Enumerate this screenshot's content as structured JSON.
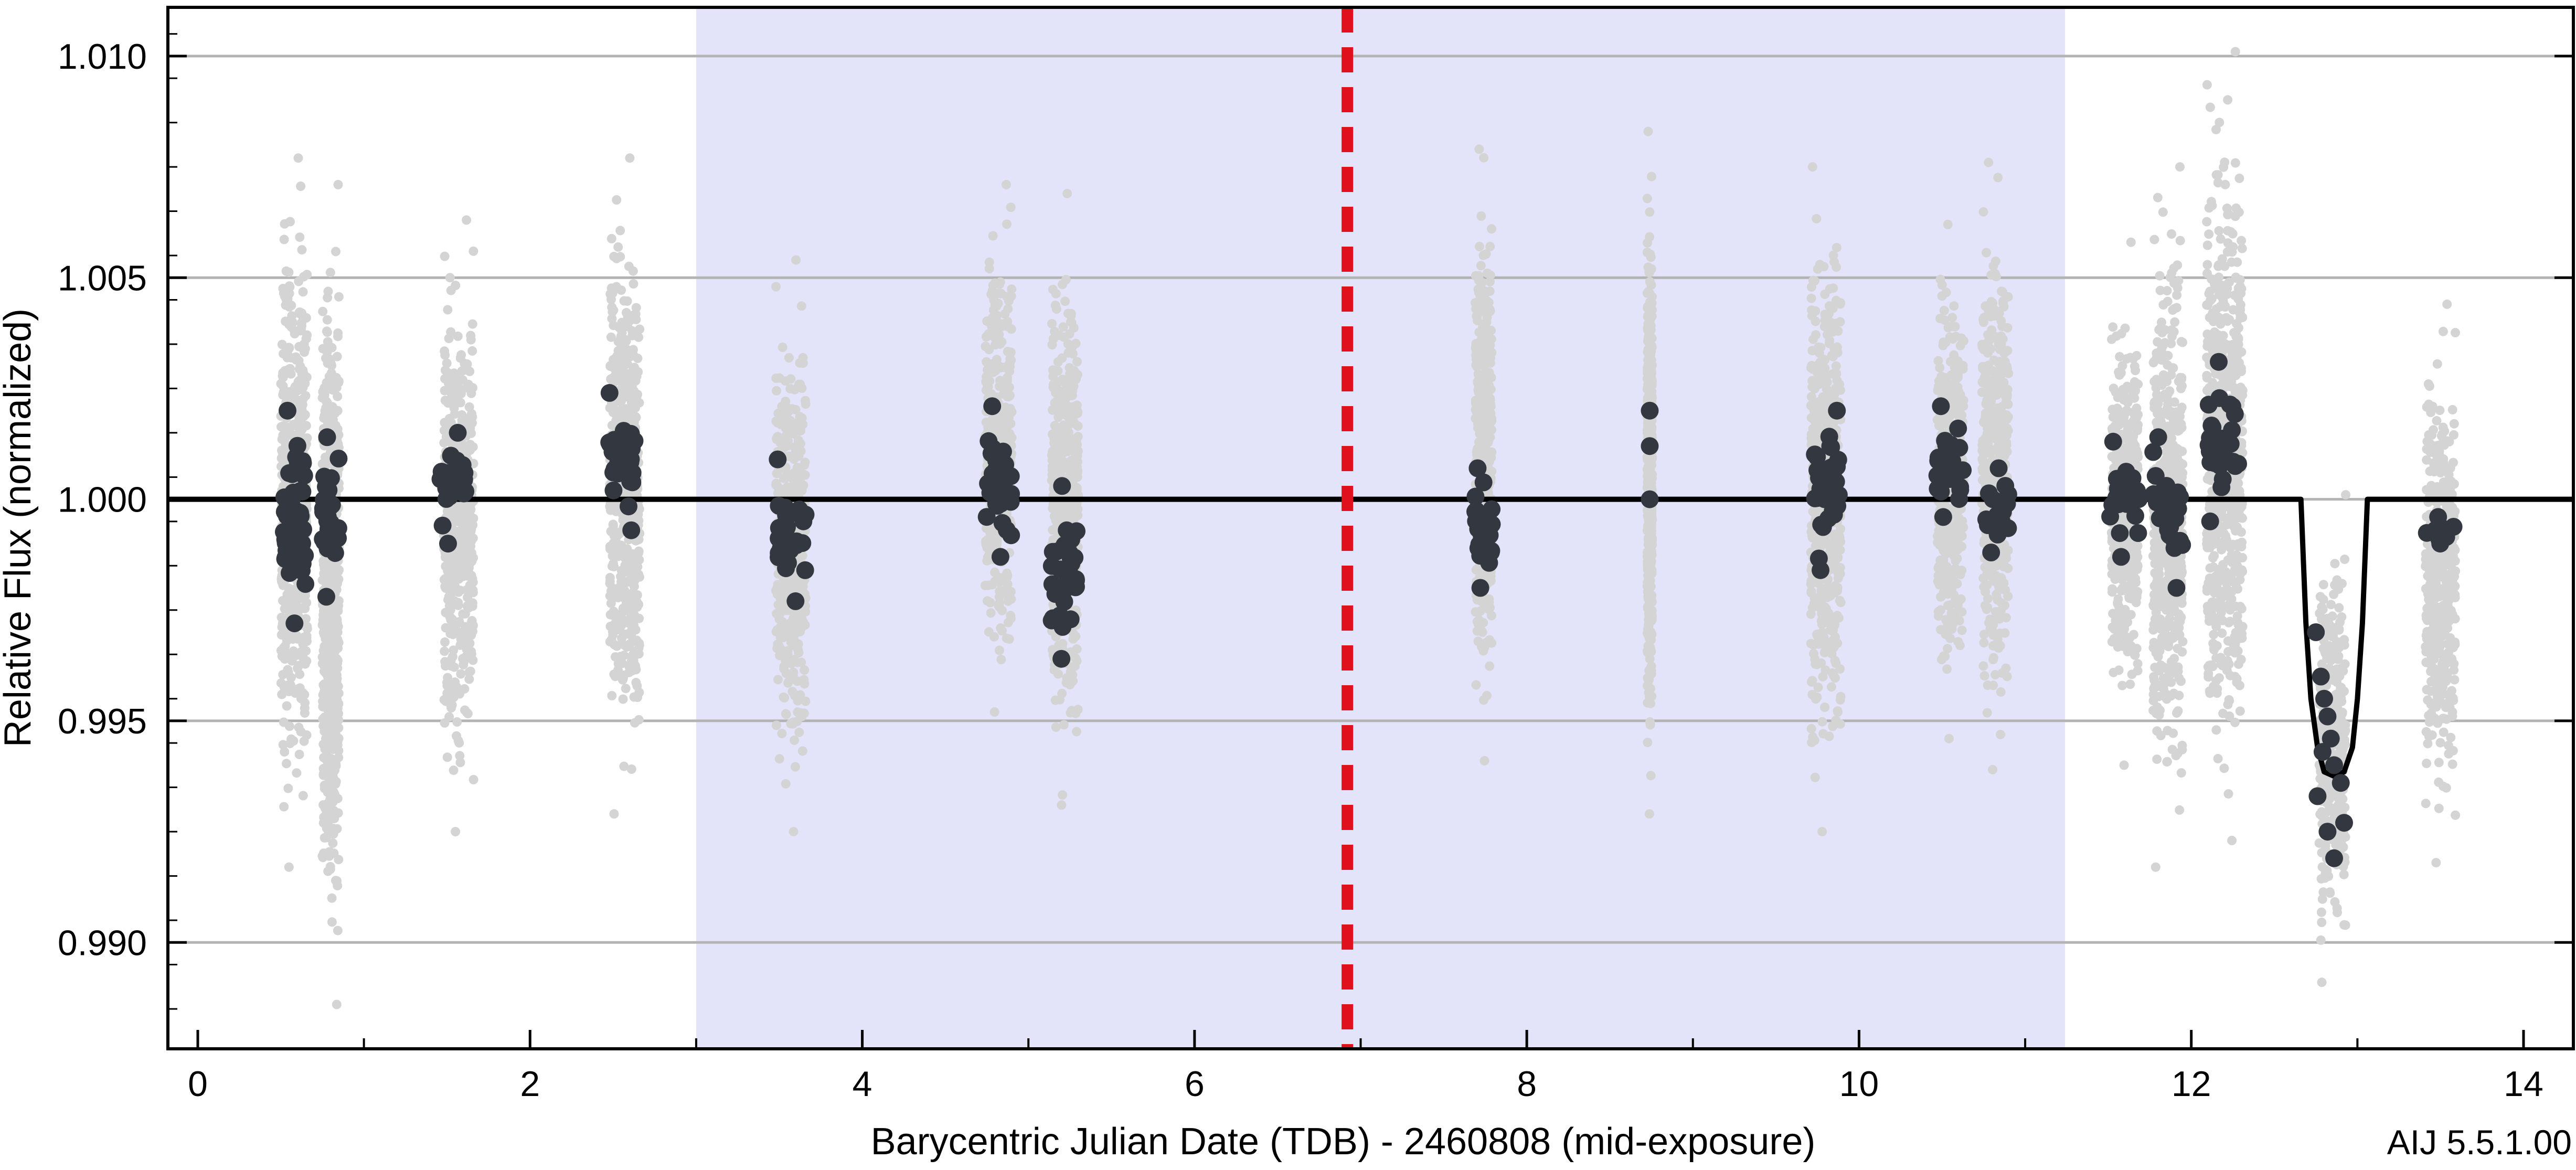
{
  "chart_data": {
    "type": "scatter",
    "title": "",
    "xlabel": "Barycentric Julian Date (TDB) - 2460808 (mid-exposure)",
    "ylabel": "Relative Flux (normalized)",
    "footer": "AIJ 5.5.1.00",
    "xlim": [
      -0.18,
      14.3
    ],
    "ylim": [
      0.9876,
      1.0111
    ],
    "x_ticks": [
      0,
      2,
      4,
      6,
      8,
      10,
      12,
      14
    ],
    "x_tick_labels": [
      "0",
      "2",
      "4",
      "6",
      "8",
      "10",
      "12",
      "14"
    ],
    "y_ticks": [
      0.99,
      0.995,
      1.0,
      1.005,
      1.01
    ],
    "y_tick_labels": [
      "0.990",
      "0.995",
      "1.000",
      "1.005",
      "1.010"
    ],
    "grid": "horizontal",
    "shaded_region": {
      "x": [
        3.0,
        11.24
      ],
      "color": "#e3e4f9"
    },
    "marker_line": {
      "x": 6.92,
      "color": "#e0101d",
      "style": "dashed"
    },
    "model": {
      "name": "model",
      "color": "#000000",
      "baseline": 1.0,
      "x": [
        12.66,
        12.69,
        12.72,
        12.76,
        12.8,
        12.86,
        12.92,
        12.97,
        13.0,
        13.03,
        13.06
      ],
      "y": [
        1.0,
        0.9972,
        0.9955,
        0.9944,
        0.99385,
        0.99375,
        0.99385,
        0.9944,
        0.9955,
        0.9972,
        1.0
      ]
    },
    "series": [
      {
        "name": "unbinned",
        "color": "#d4d4d4",
        "clusters": [
          {
            "x": 0.58,
            "width": 0.16,
            "lo": 0.9917,
            "hi": 1.0077
          },
          {
            "x": 0.8,
            "width": 0.1,
            "lo": 0.9886,
            "hi": 1.0071
          },
          {
            "x": 1.57,
            "width": 0.18,
            "lo": 0.9925,
            "hi": 1.0063
          },
          {
            "x": 2.57,
            "width": 0.18,
            "lo": 0.9929,
            "hi": 1.0077
          },
          {
            "x": 3.57,
            "width": 0.18,
            "lo": 0.9925,
            "hi": 1.0054
          },
          {
            "x": 4.82,
            "width": 0.16,
            "lo": 0.9952,
            "hi": 1.0071
          },
          {
            "x": 5.22,
            "width": 0.16,
            "lo": 0.9931,
            "hi": 1.0069
          },
          {
            "x": 7.74,
            "width": 0.1,
            "lo": 0.9941,
            "hi": 1.0079
          },
          {
            "x": 8.74,
            "width": 0.03,
            "lo": 0.9929,
            "hi": 1.0083
          },
          {
            "x": 9.8,
            "width": 0.18,
            "lo": 0.9925,
            "hi": 1.0075
          },
          {
            "x": 10.55,
            "width": 0.16,
            "lo": 0.9946,
            "hi": 1.0062
          },
          {
            "x": 10.82,
            "width": 0.16,
            "lo": 0.9939,
            "hi": 1.0076
          },
          {
            "x": 11.6,
            "width": 0.16,
            "lo": 0.994,
            "hi": 1.0058
          },
          {
            "x": 11.86,
            "width": 0.18,
            "lo": 0.9917,
            "hi": 1.0075
          },
          {
            "x": 12.2,
            "width": 0.22,
            "lo": 0.9923,
            "hi": 1.0101
          },
          {
            "x": 12.85,
            "width": 0.16,
            "lo": 0.9891,
            "hi": 1.0001
          },
          {
            "x": 13.5,
            "width": 0.18,
            "lo": 0.9918,
            "hi": 1.0044
          }
        ]
      },
      {
        "name": "binned",
        "color": "#333840",
        "clusters": [
          {
            "x": 0.58,
            "width": 0.14,
            "lo": 0.9972,
            "hi": 1.002
          },
          {
            "x": 0.8,
            "width": 0.1,
            "lo": 0.9978,
            "hi": 1.0014
          },
          {
            "x": 1.55,
            "width": 0.18,
            "lo": 0.999,
            "hi": 1.0015
          },
          {
            "x": 2.55,
            "width": 0.16,
            "lo": 0.9993,
            "hi": 1.0024
          },
          {
            "x": 3.57,
            "width": 0.18,
            "lo": 0.9977,
            "hi": 1.0009
          },
          {
            "x": 4.82,
            "width": 0.16,
            "lo": 0.9987,
            "hi": 1.0021
          },
          {
            "x": 5.22,
            "width": 0.16,
            "lo": 0.9964,
            "hi": 1.0003
          },
          {
            "x": 7.74,
            "width": 0.1,
            "lo": 0.998,
            "hi": 1.0007
          },
          {
            "x": 9.8,
            "width": 0.16,
            "lo": 0.9984,
            "hi": 1.002
          },
          {
            "x": 10.55,
            "width": 0.16,
            "lo": 0.9996,
            "hi": 1.0021
          },
          {
            "x": 10.82,
            "width": 0.16,
            "lo": 0.9988,
            "hi": 1.0007
          },
          {
            "x": 11.6,
            "width": 0.18,
            "lo": 0.9987,
            "hi": 1.0013
          },
          {
            "x": 11.86,
            "width": 0.18,
            "lo": 0.998,
            "hi": 1.0014
          },
          {
            "x": 12.2,
            "width": 0.2,
            "lo": 0.9995,
            "hi": 1.0031
          },
          {
            "x": 13.5,
            "width": 0.18,
            "lo": 0.999,
            "hi": 0.9996
          }
        ],
        "points": [
          {
            "x": 8.74,
            "y": 1.002
          },
          {
            "x": 8.74,
            "y": 1.0012
          },
          {
            "x": 8.74,
            "y": 1.0
          },
          {
            "x": 12.75,
            "y": 0.997
          },
          {
            "x": 12.78,
            "y": 0.996
          },
          {
            "x": 12.8,
            "y": 0.9955
          },
          {
            "x": 12.82,
            "y": 0.9951
          },
          {
            "x": 12.84,
            "y": 0.9946
          },
          {
            "x": 12.86,
            "y": 0.994
          },
          {
            "x": 12.76,
            "y": 0.9933
          },
          {
            "x": 12.9,
            "y": 0.9936
          },
          {
            "x": 12.82,
            "y": 0.9925
          },
          {
            "x": 12.86,
            "y": 0.9919
          },
          {
            "x": 12.92,
            "y": 0.9927
          },
          {
            "x": 12.79,
            "y": 0.9943
          }
        ]
      }
    ]
  }
}
